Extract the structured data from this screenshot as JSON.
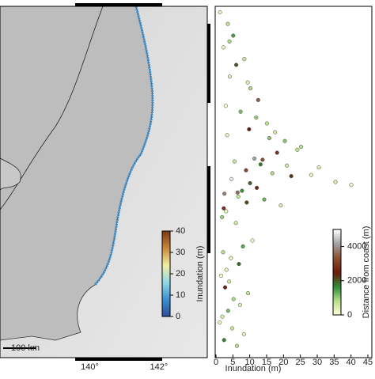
{
  "chart_data": [
    {
      "type": "map",
      "xticks": [
        {
          "value": 140,
          "label": "140°"
        },
        {
          "value": 142,
          "label": "142°"
        }
      ],
      "xlim": [
        137.4,
        143.4
      ],
      "scale_label": "100 km",
      "colorbar": {
        "label": "Inundation (m)",
        "lim": [
          0,
          40
        ],
        "ticks": [
          0,
          10,
          20,
          30,
          40
        ],
        "colors": [
          "#2b4c9b",
          "#3a8fd0",
          "#8fd6e8",
          "#f2f0a0",
          "#c98a3a",
          "#7a3b10"
        ]
      }
    },
    {
      "type": "scatter",
      "xlabel": "Inundation (m)",
      "xlim": [
        0,
        45
      ],
      "xticks": [
        0,
        5,
        10,
        15,
        20,
        25,
        30,
        35,
        40,
        45
      ],
      "ylim": [
        35.6,
        41.6
      ],
      "series": [
        {
          "x": [
            1.2,
            3.5,
            5.1,
            2.2,
            8.4,
            6.0,
            4.1,
            10.2,
            12.5,
            2.9,
            7.3,
            15.1,
            9.8,
            3.3,
            20.4,
            25.2,
            18.1,
            11.4,
            5.5,
            13.2,
            30.5,
            8.9,
            16.7,
            22.3,
            4.6,
            35.4,
            40.1,
            12.1,
            7.7,
            2.5,
            6.6,
            14.3,
            9.1,
            19.2,
            3.0,
            1.8,
            5.9,
            10.8,
            8.0,
            2.1,
            4.4,
            6.8,
            1.5,
            3.9,
            2.7,
            9.5,
            5.2,
            7.1,
            3.6,
            1.1,
            4.8,
            8.3,
            2.4,
            6.2,
            11.9,
            17.5,
            24.1,
            13.8,
            28.2,
            10.1,
            6.4,
            2.3,
            15.8,
            21.0,
            9.4,
            4.0,
            3.1,
            1.9
          ],
          "values": [
            41.5,
            41.3,
            41.1,
            40.9,
            40.7,
            40.6,
            40.4,
            40.2,
            40.0,
            39.9,
            39.8,
            39.6,
            39.5,
            39.4,
            39.3,
            39.2,
            39.1,
            39.0,
            38.95,
            38.9,
            38.85,
            38.8,
            38.75,
            38.7,
            38.65,
            38.6,
            38.55,
            38.5,
            38.45,
            38.4,
            38.35,
            38.3,
            38.25,
            38.2,
            38.1,
            38.0,
            37.9,
            37.6,
            37.5,
            37.4,
            37.3,
            37.2,
            37.0,
            36.9,
            36.8,
            36.7,
            36.6,
            36.5,
            36.4,
            36.2,
            36.1,
            36.0,
            35.9,
            35.8,
            39.7,
            39.45,
            39.15,
            38.98,
            38.72,
            38.58,
            38.42,
            38.15,
            39.35,
            38.88,
            40.3,
            41.0,
            37.1,
            36.3
          ],
          "distance": [
            300,
            800,
            1500,
            200,
            600,
            2100,
            400,
            900,
            3500,
            100,
            1200,
            700,
            2500,
            300,
            1100,
            800,
            2900,
            4200,
            600,
            1800,
            400,
            3100,
            900,
            2300,
            4800,
            500,
            200,
            2700,
            1600,
            3800,
            700,
            1300,
            2200,
            500,
            300,
            1000,
            600,
            200,
            1400,
            800,
            300,
            1900,
            100,
            500,
            2600,
            700,
            900,
            400,
            1200,
            200,
            600,
            300,
            1700,
            800,
            1000,
            500,
            700,
            3300,
            300,
            2000,
            3600,
            2800,
            1100,
            600,
            400,
            900,
            300,
            500
          ]
        }
      ],
      "colorbar": {
        "label": "Distance from coast (m)",
        "lim": [
          0,
          5000
        ],
        "ticks": [
          0,
          2000,
          4000
        ],
        "colors": [
          "#ffffd8",
          "#b8e08a",
          "#2e8b3a",
          "#6b1a0a",
          "#8a5030",
          "#a0a0a0",
          "#ffffff"
        ]
      }
    }
  ]
}
